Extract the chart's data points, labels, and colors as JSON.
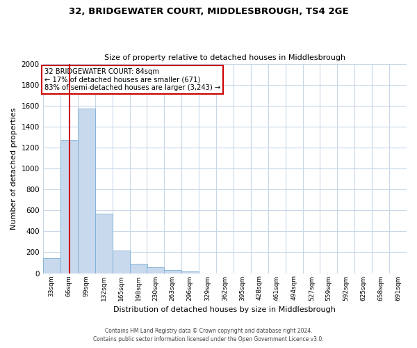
{
  "title": "32, BRIDGEWATER COURT, MIDDLESBROUGH, TS4 2GE",
  "subtitle": "Size of property relative to detached houses in Middlesbrough",
  "xlabel": "Distribution of detached houses by size in Middlesbrough",
  "ylabel": "Number of detached properties",
  "bar_color": "#c8d9ed",
  "bar_edgecolor": "#7bafd4",
  "bin_edges": [
    33,
    66,
    99,
    132,
    165,
    198,
    230,
    263,
    296,
    329,
    362,
    395,
    428,
    461,
    494,
    527,
    559,
    592,
    625,
    658,
    691
  ],
  "bar_heights": [
    140,
    1270,
    1570,
    570,
    215,
    90,
    55,
    30,
    17,
    0,
    0,
    0,
    0,
    0,
    0,
    0,
    0,
    0,
    0,
    0
  ],
  "tick_labels": [
    "33sqm",
    "66sqm",
    "99sqm",
    "132sqm",
    "165sqm",
    "198sqm",
    "230sqm",
    "263sqm",
    "296sqm",
    "329sqm",
    "362sqm",
    "395sqm",
    "428sqm",
    "461sqm",
    "494sqm",
    "527sqm",
    "559sqm",
    "592sqm",
    "625sqm",
    "658sqm",
    "691sqm"
  ],
  "ylim": [
    0,
    2000
  ],
  "yticks": [
    0,
    200,
    400,
    600,
    800,
    1000,
    1200,
    1400,
    1600,
    1800,
    2000
  ],
  "vline_x": 84,
  "vline_color": "#cc0000",
  "annotation_title": "32 BRIDGEWATER COURT: 84sqm",
  "annotation_line1": "← 17% of detached houses are smaller (671)",
  "annotation_line2": "83% of semi-detached houses are larger (3,243) →",
  "annotation_box_color": "#cc0000",
  "footer1": "Contains HM Land Registry data © Crown copyright and database right 2024.",
  "footer2": "Contains public sector information licensed under the Open Government Licence v3.0.",
  "background_color": "#ffffff",
  "grid_color": "#c8d8e8"
}
